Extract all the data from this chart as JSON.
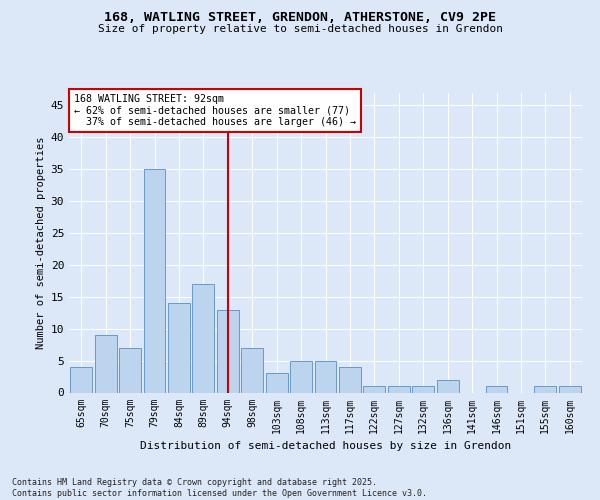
{
  "title1": "168, WATLING STREET, GRENDON, ATHERSTONE, CV9 2PE",
  "title2": "Size of property relative to semi-detached houses in Grendon",
  "xlabel": "Distribution of semi-detached houses by size in Grendon",
  "ylabel": "Number of semi-detached properties",
  "footer": "Contains HM Land Registry data © Crown copyright and database right 2025.\nContains public sector information licensed under the Open Government Licence v3.0.",
  "bin_labels": [
    "65sqm",
    "70sqm",
    "75sqm",
    "79sqm",
    "84sqm",
    "89sqm",
    "94sqm",
    "98sqm",
    "103sqm",
    "108sqm",
    "113sqm",
    "117sqm",
    "122sqm",
    "127sqm",
    "132sqm",
    "136sqm",
    "141sqm",
    "146sqm",
    "151sqm",
    "155sqm",
    "160sqm"
  ],
  "bar_heights": [
    4,
    9,
    7,
    35,
    14,
    17,
    13,
    7,
    3,
    5,
    5,
    4,
    1,
    1,
    1,
    2,
    0,
    1,
    0,
    1,
    1
  ],
  "bar_color": "#bdd4ee",
  "bar_edge_color": "#6699cc",
  "property_line_x": 6,
  "property_line_label": "168 WATLING STREET: 92sqm",
  "annotation_line1": "← 62% of semi-detached houses are smaller (77)",
  "annotation_line2": "  37% of semi-detached houses are larger (46) →",
  "vline_color": "#cc0000",
  "ylim": [
    0,
    47
  ],
  "yticks": [
    0,
    5,
    10,
    15,
    20,
    25,
    30,
    35,
    40,
    45
  ],
  "bg_color": "#dce8f8",
  "plot_bg_color": "#dce8f8",
  "grid_color": "#ffffff"
}
